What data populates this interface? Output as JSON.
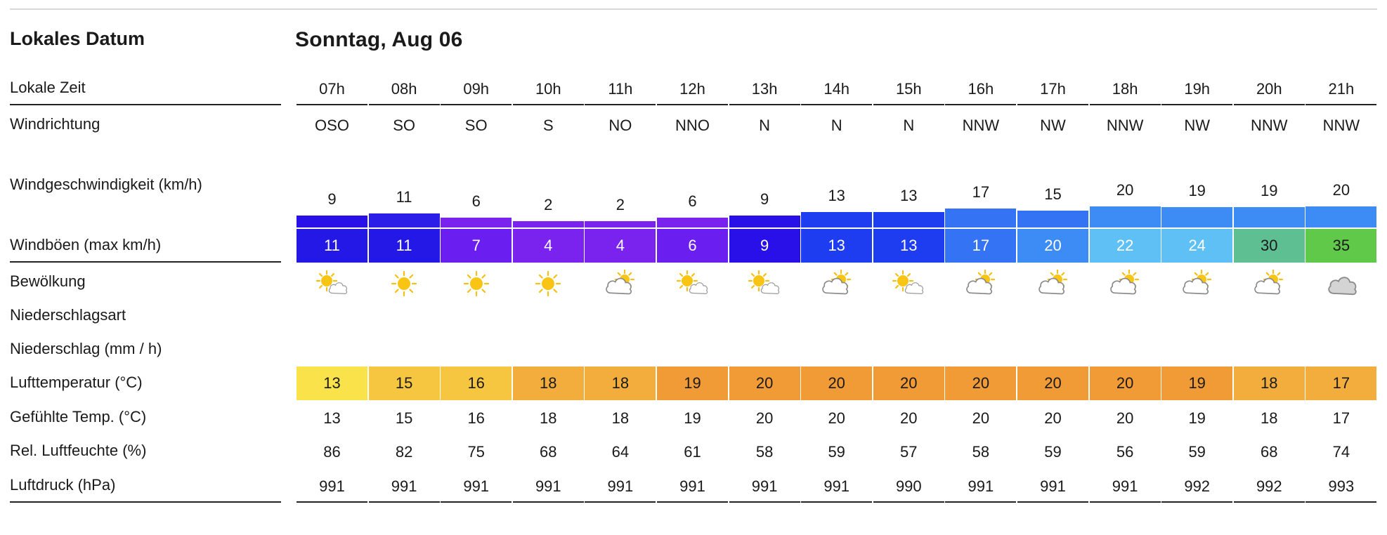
{
  "header": {
    "left_title": "Lokales Datum",
    "day_title": "Sonntag, Aug 06"
  },
  "labels": {
    "time": "Lokale Zeit",
    "direction": "Windrichtung",
    "speed": "Windgeschwindigkeit (km/h)",
    "gusts": "Windböen (max km/h)",
    "clouds": "Bewölkung",
    "precip_type": "Niederschlagsart",
    "precip": "Niederschlag (mm / h)",
    "temp": "Lufttemperatur (°C)",
    "feels": "Gefühlte Temp. (°C)",
    "humidity": "Rel. Luftfeuchte (%)",
    "pressure": "Luftdruck (hPa)"
  },
  "hours": [
    "07h",
    "08h",
    "09h",
    "10h",
    "11h",
    "12h",
    "13h",
    "14h",
    "15h",
    "16h",
    "17h",
    "18h",
    "19h",
    "20h",
    "21h"
  ],
  "directions": [
    "OSO",
    "SO",
    "SO",
    "S",
    "NO",
    "NNO",
    "N",
    "N",
    "N",
    "NNW",
    "NW",
    "NNW",
    "NW",
    "NNW",
    "NNW"
  ],
  "speeds": [
    "9",
    "11",
    "6",
    "2",
    "2",
    "6",
    "9",
    "13",
    "13",
    "17",
    "15",
    "20",
    "19",
    "19",
    "20"
  ],
  "speed_bar_colors": [
    "#2a10e8",
    "#2a1ee8",
    "#7a22ee",
    "#7a22ee",
    "#7a22ee",
    "#7a22ee",
    "#2a10e8",
    "#1f3df0",
    "#1f3df0",
    "#3573f5",
    "#3573f5",
    "#3d8cf6",
    "#3d8cf6",
    "#3d8cf6",
    "#3d8cf6"
  ],
  "gusts": [
    "11",
    "11",
    "7",
    "4",
    "4",
    "6",
    "9",
    "13",
    "13",
    "17",
    "20",
    "22",
    "24",
    "30",
    "35"
  ],
  "gust_colors": [
    "#2418e6",
    "#2418e6",
    "#6a1ef0",
    "#7a22ee",
    "#7a22ee",
    "#6a1ef0",
    "#2a10e8",
    "#1f3df0",
    "#1f3df0",
    "#3573f5",
    "#3d8cf6",
    "#5ec0f5",
    "#5ec0f5",
    "#5ebf93",
    "#60c94a"
  ],
  "clouds": [
    "partly",
    "sun",
    "sun",
    "sun",
    "mostly",
    "partly",
    "partly",
    "mostly",
    "partly",
    "mostly",
    "mostly",
    "mostly",
    "mostly",
    "mostly",
    "cloud"
  ],
  "temps": [
    "13",
    "15",
    "16",
    "18",
    "18",
    "19",
    "20",
    "20",
    "20",
    "20",
    "20",
    "20",
    "19",
    "18",
    "17"
  ],
  "temp_colors": [
    "#f9e24a",
    "#f6c641",
    "#f6c641",
    "#f3ad3d",
    "#f3ad3d",
    "#f19b36",
    "#f19b36",
    "#f19b36",
    "#f19b36",
    "#f19b36",
    "#f19b36",
    "#f19b36",
    "#f19b36",
    "#f3ad3d",
    "#f3ad3d"
  ],
  "feels": [
    "13",
    "15",
    "16",
    "18",
    "18",
    "19",
    "20",
    "20",
    "20",
    "20",
    "20",
    "20",
    "19",
    "18",
    "17"
  ],
  "humidity": [
    "86",
    "82",
    "75",
    "68",
    "64",
    "61",
    "58",
    "59",
    "57",
    "58",
    "59",
    "56",
    "59",
    "68",
    "74"
  ],
  "pressure": [
    "991",
    "991",
    "991",
    "991",
    "991",
    "991",
    "991",
    "991",
    "990",
    "991",
    "991",
    "991",
    "992",
    "992",
    "993"
  ]
}
